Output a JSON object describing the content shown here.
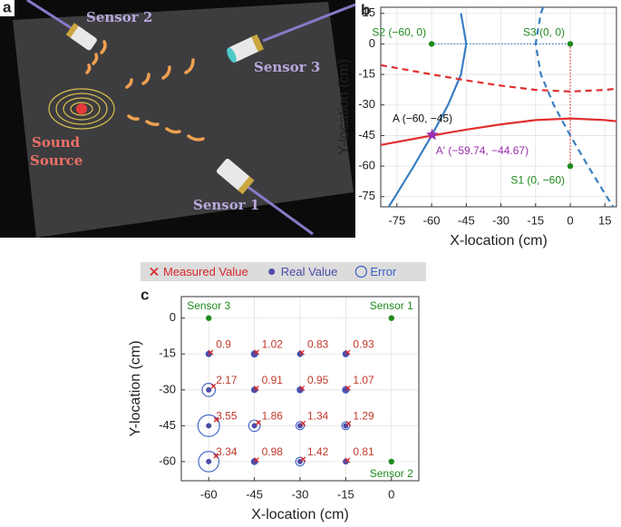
{
  "illustration": {
    "panel_label": "a",
    "sensor_labels": [
      "Sensor 2",
      "Sensor 3",
      "Sensor 1"
    ],
    "source_label": [
      "Sound",
      "Source"
    ]
  },
  "chart_data": [
    {
      "type": "line",
      "panel_label": "b",
      "xlabel": "X-location (cm)",
      "ylabel": "Y-location (cm)",
      "xlim": [
        -82,
        20
      ],
      "ylim": [
        -80,
        18
      ],
      "xticks": [
        -75,
        -60,
        -45,
        -30,
        -15,
        0,
        15
      ],
      "yticks": [
        15,
        0,
        -15,
        -30,
        -45,
        -60,
        -75
      ],
      "grid": true,
      "series": [
        {
          "color": "#3a7fc1",
          "linestyle": "solid",
          "x": [
            -47.3,
            -45,
            -47.3,
            -52.9,
            -60,
            -67.7,
            -75.8,
            -78.6
          ],
          "y": [
            15,
            0,
            -15,
            -30,
            -45,
            -60,
            -75,
            -80
          ]
        },
        {
          "color": "#3a7fc1",
          "linestyle": "dashed",
          "x": [
            -11.75,
            -12.7,
            -15,
            -12.7,
            -7.1,
            0,
            7.7,
            15.8,
            18.6
          ],
          "y": [
            18,
            15,
            0,
            -15,
            -30,
            -45,
            -60,
            -75,
            -80
          ]
        },
        {
          "color": "#e03030",
          "linestyle": "solid",
          "x": [
            -82,
            -60,
            -45,
            -30,
            -15,
            0,
            15,
            20
          ],
          "y": [
            -49.6,
            -45.05,
            -42.1,
            -39.5,
            -37.4,
            -36.6,
            -37.4,
            -38.0
          ]
        },
        {
          "color": "#e03030",
          "linestyle": "dashed",
          "x": [
            -82,
            -60,
            -45,
            -30,
            -15,
            0,
            15,
            20
          ],
          "y": [
            -10.4,
            -14.95,
            -17.9,
            -20.5,
            -22.6,
            -23.4,
            -22.6,
            -22.0
          ]
        }
      ],
      "points": [
        {
          "label": "S2 (−60, 0)",
          "x": -60,
          "y": 0,
          "color": "#1e8a1e",
          "marker": "dot"
        },
        {
          "label": "S3 (0, 0)",
          "x": 0,
          "y": 0,
          "color": "#1e8a1e",
          "marker": "dot"
        },
        {
          "label": "S1 (0, −60)",
          "x": 0,
          "y": -60,
          "color": "#1e8a1e",
          "marker": "dot"
        },
        {
          "label": "A (−60, −45)",
          "x": -60,
          "y": -45,
          "color": "#111111",
          "marker": "none"
        },
        {
          "label": "A' (−59.74, −44.67)",
          "x": -59.74,
          "y": -44.67,
          "color": "#9b2fae",
          "marker": "star"
        }
      ]
    },
    {
      "type": "scatter",
      "panel_label": "c",
      "xlabel": "X-location (cm)",
      "ylabel": "Y-location (cm)",
      "xlim": [
        -69,
        9
      ],
      "ylim": [
        -68,
        9
      ],
      "xticks": [
        -60,
        -45,
        -30,
        -15,
        0
      ],
      "yticks": [
        0,
        -15,
        -30,
        -45,
        -60
      ],
      "grid": true,
      "legend": "top",
      "series": [
        {
          "name": "Measured Value",
          "marker": "x",
          "color": "#d62728",
          "x": [
            -59.36,
            -44.28,
            -29.41,
            -14.34,
            -58.47,
            -44.36,
            -29.33,
            -14.24,
            -57.49,
            -43.68,
            -29.05,
            -14.09,
            -57.64,
            -44.31,
            -29.0,
            -14.43
          ],
          "y": [
            -14.36,
            -14.28,
            -14.41,
            -14.34,
            -28.47,
            -29.36,
            -29.33,
            -29.24,
            -42.49,
            -43.68,
            -44.05,
            -44.09,
            -57.64,
            -59.31,
            -59.0,
            -59.43
          ]
        },
        {
          "name": "Real Value",
          "marker": "dot",
          "color": "#4b4ba8",
          "x": [
            -60,
            -45,
            -30,
            -15,
            -60,
            -45,
            -30,
            -15,
            -60,
            -45,
            -30,
            -15,
            -60,
            -45,
            -30,
            -15
          ],
          "y": [
            -15,
            -15,
            -15,
            -15,
            -30,
            -30,
            -30,
            -30,
            -45,
            -45,
            -45,
            -45,
            -60,
            -60,
            -60,
            -60
          ]
        },
        {
          "name": "Error",
          "marker": "circle",
          "color": "#3b5fc4",
          "values": [
            0.9,
            1.02,
            0.83,
            0.93,
            2.17,
            0.91,
            0.95,
            1.07,
            3.55,
            1.86,
            1.34,
            1.29,
            3.34,
            0.98,
            1.42,
            0.81
          ],
          "label_color": "#c0392b"
        }
      ],
      "sensors": [
        {
          "label": "Sensor 3",
          "x": -60,
          "y": 0
        },
        {
          "label": "Sensor 1",
          "x": 0,
          "y": 0
        },
        {
          "label": "Sensor 2",
          "x": 0,
          "y": -60
        }
      ],
      "sensor_color": "#1e8a1e"
    }
  ]
}
